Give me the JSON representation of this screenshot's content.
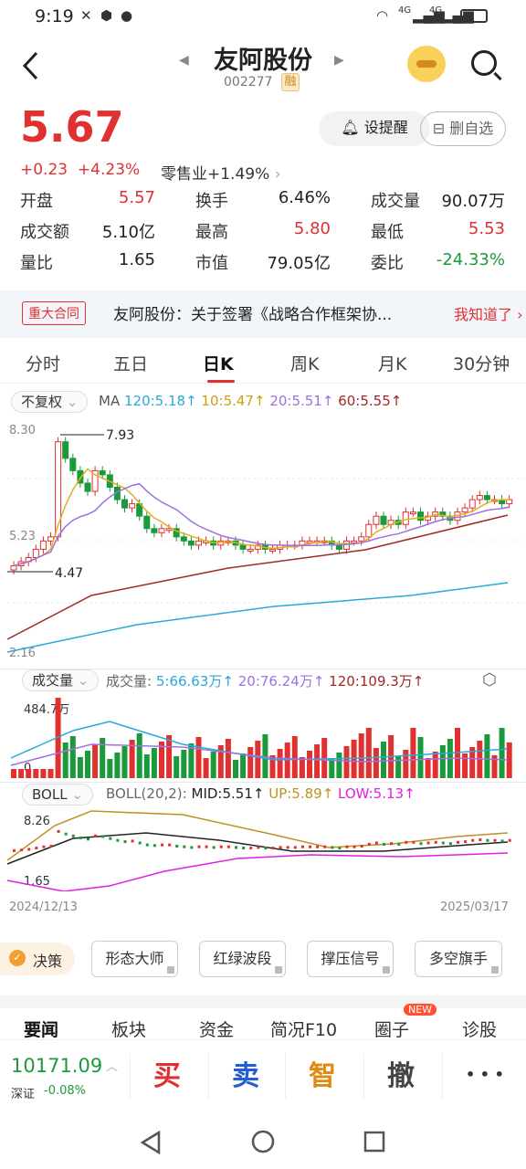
{
  "status": {
    "time": "9:19",
    "signal1": "4G",
    "signal2": "4G"
  },
  "header": {
    "title": "友阿股份",
    "code": "002277",
    "tag": "融"
  },
  "quote": {
    "price": "5.67",
    "change": "+0.23",
    "change_pct": "+4.23%",
    "sector": "零售业+1.49%",
    "remind": "设提醒",
    "remove": "删自选"
  },
  "stats": [
    {
      "label": "开盘",
      "value": "5.57",
      "color": "red"
    },
    {
      "label": "换手",
      "value": "6.46%",
      "color": "black"
    },
    {
      "label": "成交量",
      "value": "90.07万",
      "color": "black"
    },
    {
      "label": "成交额",
      "value": "5.10亿",
      "color": "black"
    },
    {
      "label": "最高",
      "value": "5.80",
      "color": "red"
    },
    {
      "label": "最低",
      "value": "5.53",
      "color": "red"
    },
    {
      "label": "量比",
      "value": "1.65",
      "color": "black"
    },
    {
      "label": "市值",
      "value": "79.05亿",
      "color": "black"
    },
    {
      "label": "委比",
      "value": "-24.33%",
      "color": "green"
    }
  ],
  "notice": {
    "tag": "重大合同",
    "text": "友阿股份：关于签署《战略合作框架协...",
    "action": "我知道了"
  },
  "tabs": [
    "分时",
    "五日",
    "日K",
    "周K",
    "月K",
    "30分钟"
  ],
  "kline": {
    "adjust": "不复权",
    "ma_label": "MA",
    "ma120": "120:5.18↑",
    "ma10": "10:5.47↑",
    "ma20": "20:5.51↑",
    "ma60": "60:5.55↑",
    "y_top": "8.30",
    "y_mid": "5.23",
    "y_bot": "2.16",
    "high_mark": "7.93",
    "low_mark": "4.47"
  },
  "volume": {
    "selector": "成交量",
    "label": "成交量:",
    "v5": "5:66.63万↑",
    "v20": "20:76.24万↑",
    "v120": "120:109.3万↑",
    "y_top": "484.7万",
    "y_bot": "0"
  },
  "boll": {
    "selector": "BOLL",
    "label": "BOLL(20,2):",
    "mid": "MID:5.51↑",
    "up": "UP:5.89↑",
    "low": "LOW:5.13↑",
    "y_top": "8.26",
    "y_bot": "1.65"
  },
  "dates": {
    "start": "2024/12/13",
    "end": "2025/03/17"
  },
  "strategy": {
    "label": "决策",
    "items": [
      "形态大师",
      "红绿波段",
      "撑压信号",
      "多空旗手"
    ]
  },
  "news_tabs": [
    "要闻",
    "板块",
    "资金",
    "简况F10",
    "圈子",
    "诊股"
  ],
  "news_badge": "NEW",
  "bottom": {
    "index_value": "10171.09",
    "index_name": "深证",
    "index_change": "-0.08%",
    "buy": "买",
    "sell": "卖",
    "smart": "智",
    "cancel": "撤",
    "more": "• • •"
  },
  "colors": {
    "up": "#e03030",
    "down": "#1a9a3a",
    "ma10": "#e0b020",
    "ma20": "#a070e0",
    "ma60": "#a02828",
    "ma120": "#2aa8d8"
  }
}
